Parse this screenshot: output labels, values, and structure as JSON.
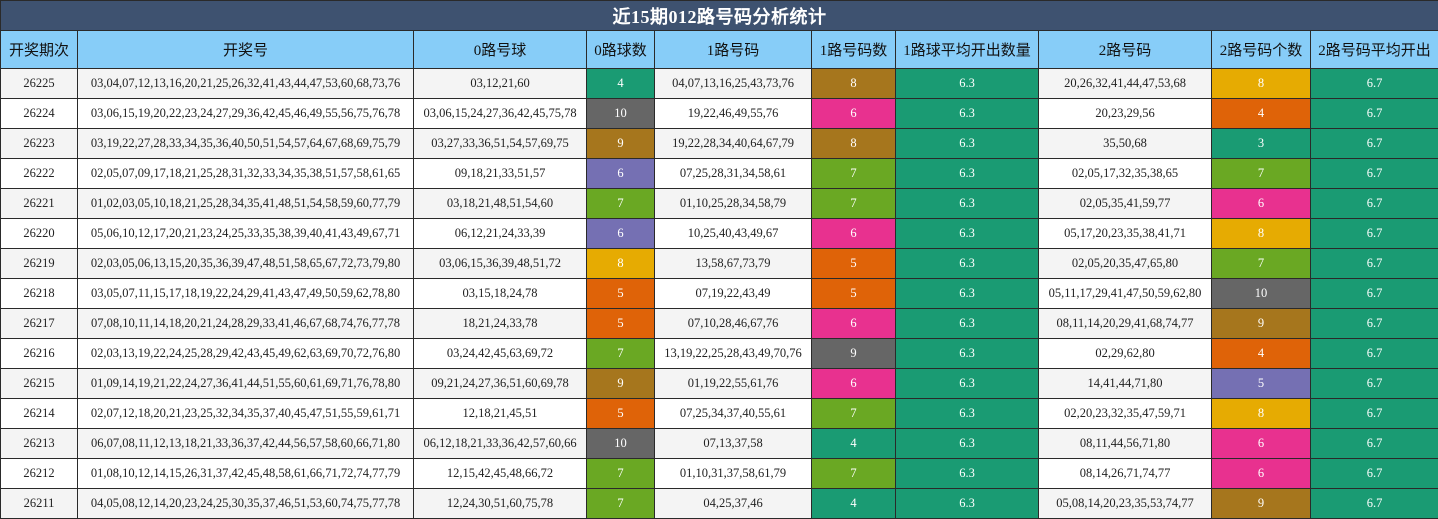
{
  "title": "近15期012路号码分析统计",
  "headers": [
    "开奖期次",
    "开奖号",
    "0路号球",
    "0路球数",
    "1路号码",
    "1路号码数",
    "1路球平均开出数量",
    "2路号码",
    "2路号码个数",
    "2路号码平均开出"
  ],
  "count_colors": {
    "3": "#1a9b73",
    "4": "#1a9b73",
    "5": "#df6308",
    "6": "#e8318f",
    "7": "#6aa823",
    "8": "#a6761d",
    "9": "#a6761d",
    "10": "#666666"
  },
  "highlight_colors": {
    "violet": "#7570b3",
    "gold": "#e6ab02",
    "olive": "#a6761d",
    "teal": "#1a9b73"
  },
  "rows": [
    {
      "period": "26225",
      "numbers": "03,04,07,12,13,16,20,21,25,26,32,41,43,44,47,53,60,68,73,76",
      "r0": "03,12,21,60",
      "r0_count": "4",
      "r1": "04,07,13,16,25,43,73,76",
      "r1_count": "8",
      "r1_avg": "6.3",
      "r2": "20,26,32,41,44,47,53,68",
      "r2_count": "8",
      "r2_avg": "6.7",
      "c0": "#1a9b73",
      "c1": "#a6761d",
      "c2": "#e6ab02"
    },
    {
      "period": "26224",
      "numbers": "03,06,15,19,20,22,23,24,27,29,36,42,45,46,49,55,56,75,76,78",
      "r0": "03,06,15,24,27,36,42,45,75,78",
      "r0_count": "10",
      "r1": "19,22,46,49,55,76",
      "r1_count": "6",
      "r1_avg": "6.3",
      "r2": "20,23,29,56",
      "r2_count": "4",
      "r2_avg": "6.7",
      "c0": "#666666",
      "c1": "#e8318f",
      "c2": "#df6308"
    },
    {
      "period": "26223",
      "numbers": "03,19,22,27,28,33,34,35,36,40,50,51,54,57,64,67,68,69,75,79",
      "r0": "03,27,33,36,51,54,57,69,75",
      "r0_count": "9",
      "r1": "19,22,28,34,40,64,67,79",
      "r1_count": "8",
      "r1_avg": "6.3",
      "r2": "35,50,68",
      "r2_count": "3",
      "r2_avg": "6.7",
      "c0": "#a6761d",
      "c1": "#a6761d",
      "c2": "#1a9b73"
    },
    {
      "period": "26222",
      "numbers": "02,05,07,09,17,18,21,25,28,31,32,33,34,35,38,51,57,58,61,65",
      "r0": "09,18,21,33,51,57",
      "r0_count": "6",
      "r1": "07,25,28,31,34,58,61",
      "r1_count": "7",
      "r1_avg": "6.3",
      "r2": "02,05,17,32,35,38,65",
      "r2_count": "7",
      "r2_avg": "6.7",
      "c0": "#7570b3",
      "c1": "#6aa823",
      "c2": "#6aa823"
    },
    {
      "period": "26221",
      "numbers": "01,02,03,05,10,18,21,25,28,34,35,41,48,51,54,58,59,60,77,79",
      "r0": "03,18,21,48,51,54,60",
      "r0_count": "7",
      "r1": "01,10,25,28,34,58,79",
      "r1_count": "7",
      "r1_avg": "6.3",
      "r2": "02,05,35,41,59,77",
      "r2_count": "6",
      "r2_avg": "6.7",
      "c0": "#6aa823",
      "c1": "#6aa823",
      "c2": "#e8318f"
    },
    {
      "period": "26220",
      "numbers": "05,06,10,12,17,20,21,23,24,25,33,35,38,39,40,41,43,49,67,71",
      "r0": "06,12,21,24,33,39",
      "r0_count": "6",
      "r1": "10,25,40,43,49,67",
      "r1_count": "6",
      "r1_avg": "6.3",
      "r2": "05,17,20,23,35,38,41,71",
      "r2_count": "8",
      "r2_avg": "6.7",
      "c0": "#7570b3",
      "c1": "#e8318f",
      "c2": "#e6ab02"
    },
    {
      "period": "26219",
      "numbers": "02,03,05,06,13,15,20,35,36,39,47,48,51,58,65,67,72,73,79,80",
      "r0": "03,06,15,36,39,48,51,72",
      "r0_count": "8",
      "r1": "13,58,67,73,79",
      "r1_count": "5",
      "r1_avg": "6.3",
      "r2": "02,05,20,35,47,65,80",
      "r2_count": "7",
      "r2_avg": "6.7",
      "c0": "#e6ab02",
      "c1": "#df6308",
      "c2": "#6aa823"
    },
    {
      "period": "26218",
      "numbers": "03,05,07,11,15,17,18,19,22,24,29,41,43,47,49,50,59,62,78,80",
      "r0": "03,15,18,24,78",
      "r0_count": "5",
      "r1": "07,19,22,43,49",
      "r1_count": "5",
      "r1_avg": "6.3",
      "r2": "05,11,17,29,41,47,50,59,62,80",
      "r2_count": "10",
      "r2_avg": "6.7",
      "c0": "#df6308",
      "c1": "#df6308",
      "c2": "#666666"
    },
    {
      "period": "26217",
      "numbers": "07,08,10,11,14,18,20,21,24,28,29,33,41,46,67,68,74,76,77,78",
      "r0": "18,21,24,33,78",
      "r0_count": "5",
      "r1": "07,10,28,46,67,76",
      "r1_count": "6",
      "r1_avg": "6.3",
      "r2": "08,11,14,20,29,41,68,74,77",
      "r2_count": "9",
      "r2_avg": "6.7",
      "c0": "#df6308",
      "c1": "#e8318f",
      "c2": "#a6761d"
    },
    {
      "period": "26216",
      "numbers": "02,03,13,19,22,24,25,28,29,42,43,45,49,62,63,69,70,72,76,80",
      "r0": "03,24,42,45,63,69,72",
      "r0_count": "7",
      "r1": "13,19,22,25,28,43,49,70,76",
      "r1_count": "9",
      "r1_avg": "6.3",
      "r2": "02,29,62,80",
      "r2_count": "4",
      "r2_avg": "6.7",
      "c0": "#6aa823",
      "c1": "#666666",
      "c2": "#df6308"
    },
    {
      "period": "26215",
      "numbers": "01,09,14,19,21,22,24,27,36,41,44,51,55,60,61,69,71,76,78,80",
      "r0": "09,21,24,27,36,51,60,69,78",
      "r0_count": "9",
      "r1": "01,19,22,55,61,76",
      "r1_count": "6",
      "r1_avg": "6.3",
      "r2": "14,41,44,71,80",
      "r2_count": "5",
      "r2_avg": "6.7",
      "c0": "#a6761d",
      "c1": "#e8318f",
      "c2": "#7570b3"
    },
    {
      "period": "26214",
      "numbers": "02,07,12,18,20,21,23,25,32,34,35,37,40,45,47,51,55,59,61,71",
      "r0": "12,18,21,45,51",
      "r0_count": "5",
      "r1": "07,25,34,37,40,55,61",
      "r1_count": "7",
      "r1_avg": "6.3",
      "r2": "02,20,23,32,35,47,59,71",
      "r2_count": "8",
      "r2_avg": "6.7",
      "c0": "#df6308",
      "c1": "#6aa823",
      "c2": "#e6ab02"
    },
    {
      "period": "26213",
      "numbers": "06,07,08,11,12,13,18,21,33,36,37,42,44,56,57,58,60,66,71,80",
      "r0": "06,12,18,21,33,36,42,57,60,66",
      "r0_count": "10",
      "r1": "07,13,37,58",
      "r1_count": "4",
      "r1_avg": "6.3",
      "r2": "08,11,44,56,71,80",
      "r2_count": "6",
      "r2_avg": "6.7",
      "c0": "#666666",
      "c1": "#1a9b73",
      "c2": "#e8318f"
    },
    {
      "period": "26212",
      "numbers": "01,08,10,12,14,15,26,31,37,42,45,48,58,61,66,71,72,74,77,79",
      "r0": "12,15,42,45,48,66,72",
      "r0_count": "7",
      "r1": "01,10,31,37,58,61,79",
      "r1_count": "7",
      "r1_avg": "6.3",
      "r2": "08,14,26,71,74,77",
      "r2_count": "6",
      "r2_avg": "6.7",
      "c0": "#6aa823",
      "c1": "#6aa823",
      "c2": "#e8318f"
    },
    {
      "period": "26211",
      "numbers": "04,05,08,12,14,20,23,24,25,30,35,37,46,51,53,60,74,75,77,78",
      "r0": "12,24,30,51,60,75,78",
      "r0_count": "7",
      "r1": "04,25,37,46",
      "r1_count": "4",
      "r1_avg": "6.3",
      "r2": "05,08,14,20,23,35,53,74,77",
      "r2_count": "9",
      "r2_avg": "6.7",
      "c0": "#6aa823",
      "c1": "#1a9b73",
      "c2": "#a6761d"
    }
  ]
}
